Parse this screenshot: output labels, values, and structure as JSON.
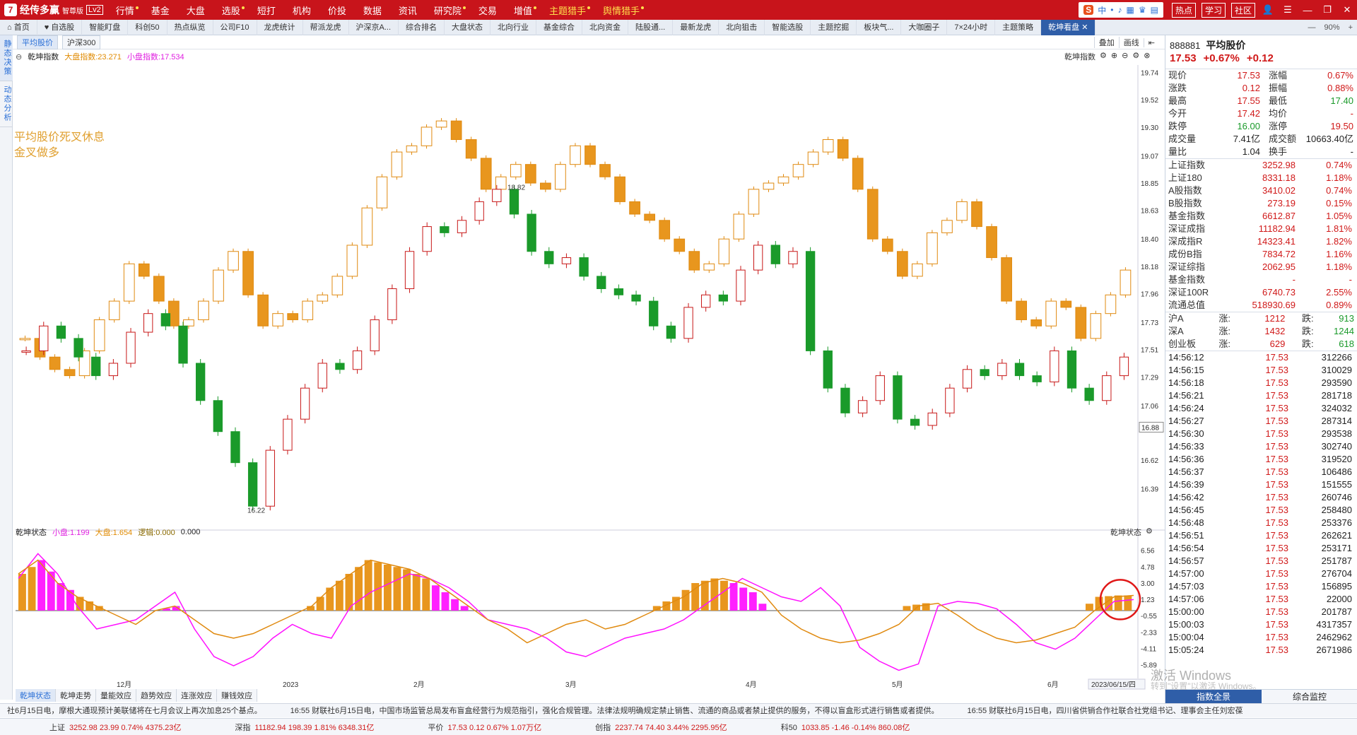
{
  "app": {
    "logo": "经传多赢",
    "edition": "智尊版",
    "level": "Lv2"
  },
  "menu": [
    {
      "label": "行情",
      "dot": true
    },
    {
      "label": "基金",
      "dot": false
    },
    {
      "label": "大盘",
      "dot": false
    },
    {
      "label": "选股",
      "dot": true
    },
    {
      "label": "短打",
      "dot": false
    },
    {
      "label": "机构",
      "dot": false
    },
    {
      "label": "价投",
      "dot": false
    },
    {
      "label": "数据",
      "dot": false
    },
    {
      "label": "资讯",
      "dot": false
    },
    {
      "label": "研究院",
      "dot": true
    },
    {
      "label": "交易",
      "dot": false
    },
    {
      "label": "增值",
      "dot": true
    },
    {
      "label": "主题猎手",
      "dot": true,
      "hl": true
    },
    {
      "label": "舆情猎手",
      "dot": true,
      "hl": true
    }
  ],
  "top_right": {
    "ime": [
      "S",
      "中",
      "•",
      "♪",
      "▦",
      "♛",
      "▤"
    ],
    "btns": [
      "热点",
      "学习",
      "社区"
    ]
  },
  "tabs": [
    "首页",
    "自选股",
    "智能盯盘",
    "科创50",
    "热点纵览",
    "公司F10",
    "龙虎统计",
    "帮派龙虎",
    "沪深京A...",
    "综合排名",
    "大盘状态",
    "北向行业",
    "基金综合",
    "北向资金",
    "陆股通...",
    "最新龙虎",
    "北向狙击",
    "智能选股",
    "主题挖掘",
    "板块气...",
    "大咖圈子",
    "7×24小时",
    "主题策略",
    "乾坤看盘"
  ],
  "tabs_right": {
    "zoom": "90%"
  },
  "left_strip": [
    "静态决策",
    "动态分析"
  ],
  "toolbar": {
    "left": [
      "平均股价",
      "沪深300"
    ],
    "right": [
      "叠加",
      "画线"
    ]
  },
  "main_legend": {
    "name": "乾坤指数",
    "big_label": "大盘指数:23.271",
    "small_label": "小盘指数:17.534",
    "right": "乾坤指数"
  },
  "annotation": [
    "平均股价死叉休息",
    "金叉做多"
  ],
  "sub_legend": {
    "name": "乾坤状态",
    "small": "小盘:1.199",
    "big": "大盘:1.654",
    "logic": "逻辑:0.000",
    "v": "0.000",
    "right": "乾坤状态"
  },
  "chart_data": {
    "type": "candlestick",
    "y_ticks": [
      "19.74",
      "19.52",
      "19.30",
      "19.07",
      "18.85",
      "18.63",
      "18.40",
      "18.18",
      "17.96",
      "17.73",
      "17.51",
      "17.29",
      "17.06",
      "16.88",
      "16.62",
      "16.39"
    ],
    "current_price_tag": "16.88",
    "high_label": "18.82",
    "low_label": "16.22",
    "sub_y_ticks": [
      "6.56",
      "4.78",
      "3.00",
      "1.23",
      "-0.55",
      "-2.33",
      "-4.11",
      "-5.89"
    ],
    "x_labels": [
      "12月",
      "2023",
      "2月",
      "3月",
      "4月",
      "5月",
      "6月"
    ],
    "date_tag": "2023/06/15/四",
    "orange_close": [
      17.6,
      17.45,
      17.35,
      17.3,
      17.5,
      17.75,
      17.9,
      18.2,
      18.1,
      17.9,
      17.7,
      17.75,
      17.9,
      18.15,
      18.3,
      17.95,
      17.7,
      17.8,
      17.75,
      17.9,
      17.95,
      18.1,
      18.35,
      18.65,
      18.9,
      19.1,
      19.15,
      19.3,
      19.35,
      19.2,
      19.05,
      18.8,
      18.9,
      19.0,
      18.85,
      18.8,
      19.0,
      19.15,
      19.0,
      18.9,
      18.7,
      18.6,
      18.55,
      18.4,
      18.3,
      18.15,
      18.2,
      18.4,
      18.6,
      18.8,
      18.85,
      18.9,
      19.0,
      19.1,
      19.2,
      19.05,
      18.8,
      18.4,
      18.3,
      18.1,
      18.2,
      18.45,
      18.55,
      18.7,
      18.5,
      18.25,
      17.9,
      17.75,
      17.7,
      17.9,
      17.85,
      17.6,
      17.8,
      17.95,
      18.15
    ],
    "green_close": [
      17.5,
      17.7,
      17.6,
      17.45,
      17.3,
      17.4,
      17.65,
      17.8,
      17.7,
      17.4,
      17.1,
      16.85,
      16.6,
      16.25,
      16.7,
      16.95,
      17.2,
      17.4,
      17.35,
      17.5,
      17.75,
      18.0,
      18.3,
      18.5,
      18.45,
      18.55,
      18.7,
      18.8,
      18.6,
      18.3,
      18.2,
      18.25,
      18.1,
      18.0,
      17.95,
      17.9,
      17.7,
      17.6,
      17.85,
      17.95,
      17.9,
      18.15,
      18.35,
      18.2,
      18.3,
      17.5,
      17.2,
      17.0,
      17.1,
      17.3,
      16.95,
      16.9,
      17.0,
      17.2,
      17.35,
      17.3,
      17.4,
      17.3,
      17.25,
      17.5,
      17.2,
      17.1,
      17.3,
      17.45
    ],
    "sub_line_small": [
      3.5,
      6.2,
      4.0,
      0.5,
      -2.0,
      -1.5,
      -1.0,
      0.5,
      2.0,
      -2.0,
      -5.0,
      -6.0,
      -5.0,
      -3.0,
      -1.5,
      -2.5,
      -3.0,
      0.5,
      2.0,
      3.0,
      4.0,
      3.5,
      2.5,
      1.0,
      -1.0,
      -1.5,
      -2.0,
      -3.0,
      -4.5,
      -5.0,
      -4.0,
      -3.0,
      -2.5,
      -2.0,
      -1.0,
      0.5,
      2.0,
      3.5,
      2.5,
      1.5,
      1.0,
      2.5,
      0.5,
      -4.0,
      -5.5,
      -6.5,
      -5.8,
      0.5,
      1.0,
      0.8,
      0.2,
      -1.5,
      -3.5,
      -4.2,
      -3.0,
      -1.0,
      1.0,
      1.2
    ],
    "sub_line_big": [
      4.0,
      5.5,
      3.0,
      1.5,
      0.5,
      -0.5,
      -1.5,
      0.0,
      0.5,
      -1.0,
      -2.5,
      -3.0,
      -2.5,
      -1.5,
      -0.5,
      0.5,
      2.5,
      4.0,
      5.5,
      5.0,
      4.5,
      3.5,
      2.0,
      0.5,
      -1.0,
      -2.0,
      -3.5,
      -2.5,
      -1.5,
      -1.0,
      -2.0,
      -1.5,
      -0.5,
      0.5,
      1.5,
      3.0,
      3.5,
      3.0,
      2.0,
      -0.5,
      -2.0,
      -3.0,
      -3.5,
      -3.2,
      -2.5,
      -1.5,
      0.5,
      0.8,
      -0.5,
      -2.0,
      -3.0,
      -3.5,
      -3.2,
      -2.5,
      -1.8,
      0.0,
      1.5,
      1.65
    ]
  },
  "bottom_tabs": [
    "乾坤状态",
    "乾坤走势",
    "量能效应",
    "趋势效应",
    "连涨效应",
    "赚钱效应"
  ],
  "ticker": [
    "社6月15日电，摩根大通现预计美联储将在七月会议上再次加息25个基点。",
    "16:55 财联社6月15日电，中国市场监管总局发布盲盒经营行为规范指引，强化合规管理。法律法规明确规定禁止销售、流通的商品或者禁止提供的服务，不得以盲盒形式进行销售或者提供。",
    "16:55 财联社6月15日电，四川省供销合作社联合社党组书记、理事会主任刘宏葆"
  ],
  "statusbar": [
    {
      "n": "上证",
      "v": "3252.98  23.99  0.74%  4375.23亿"
    },
    {
      "n": "深指",
      "v": "11182.94  198.39  1.81%  6348.31亿"
    },
    {
      "n": "平价",
      "v": "17.53  0.12  0.67%  1.07万亿"
    },
    {
      "n": "创指",
      "v": "2237.74  74.40  3.44%  2295.95亿"
    },
    {
      "n": "科50",
      "v": "1033.85  -1.46  -0.14%  860.08亿"
    }
  ],
  "quote": {
    "code": "888881",
    "name": "平均股价",
    "price": "17.53",
    "pct": "+0.67%",
    "chg": "+0.12",
    "rows": [
      {
        "l": "现价",
        "v": "17.53",
        "l2": "涨幅",
        "v2": "0.67%"
      },
      {
        "l": "涨跌",
        "v": "0.12",
        "l2": "振幅",
        "v2": "0.88%"
      },
      {
        "l": "最高",
        "v": "17.55",
        "l2": "最低",
        "v2": "17.40",
        "v2g": true
      },
      {
        "l": "今开",
        "v": "17.42",
        "l2": "均价",
        "v2": "-"
      },
      {
        "l": "跌停",
        "v": "16.00",
        "vg": true,
        "l2": "涨停",
        "v2": "19.50"
      },
      {
        "l": "成交量",
        "v": "7.41亿",
        "vb": true,
        "l2": "成交额",
        "v2": "10663.40亿",
        "v2b": true
      },
      {
        "l": "量比",
        "v": "1.04",
        "vb": true,
        "l2": "换手",
        "v2": "-",
        "v2b": true
      }
    ],
    "indices": [
      {
        "n": "上证指数",
        "v": "3252.98",
        "c": "0.74%"
      },
      {
        "n": "上证180",
        "v": "8331.18",
        "c": "1.18%"
      },
      {
        "n": "A股指数",
        "v": "3410.02",
        "c": "0.74%"
      },
      {
        "n": "B股指数",
        "v": "273.19",
        "c": "0.15%"
      },
      {
        "n": "基金指数",
        "v": "6612.87",
        "c": "1.05%"
      },
      {
        "n": "深证成指",
        "v": "11182.94",
        "c": "1.81%"
      },
      {
        "n": "深成指R",
        "v": "14323.41",
        "c": "1.82%"
      },
      {
        "n": "成份B指",
        "v": "7834.72",
        "c": "1.16%"
      },
      {
        "n": "深证综指",
        "v": "2062.95",
        "c": "1.18%"
      },
      {
        "n": "基金指数",
        "v": "-",
        "c": "-"
      },
      {
        "n": "深证100R",
        "v": "6740.73",
        "c": "2.55%"
      },
      {
        "n": "流通总值",
        "v": "518930.69",
        "c": "0.89%"
      }
    ],
    "markets": [
      {
        "n": "沪A",
        "a": "1212",
        "c": "913"
      },
      {
        "n": "深A",
        "a": "1432",
        "c": "1244"
      },
      {
        "n": "创业板",
        "a": "629",
        "c": "618"
      }
    ],
    "ticks": [
      [
        "14:56:12",
        "17.53",
        "312266"
      ],
      [
        "14:56:15",
        "17.53",
        "310029"
      ],
      [
        "14:56:18",
        "17.53",
        "293590"
      ],
      [
        "14:56:21",
        "17.53",
        "281718"
      ],
      [
        "14:56:24",
        "17.53",
        "324032"
      ],
      [
        "14:56:27",
        "17.53",
        "287314"
      ],
      [
        "14:56:30",
        "17.53",
        "293538"
      ],
      [
        "14:56:33",
        "17.53",
        "302740"
      ],
      [
        "14:56:36",
        "17.53",
        "319520"
      ],
      [
        "14:56:37",
        "17.53",
        "106486"
      ],
      [
        "14:56:39",
        "17.53",
        "151555"
      ],
      [
        "14:56:42",
        "17.53",
        "260746"
      ],
      [
        "14:56:45",
        "17.53",
        "258480"
      ],
      [
        "14:56:48",
        "17.53",
        "253376"
      ],
      [
        "14:56:51",
        "17.53",
        "262621"
      ],
      [
        "14:56:54",
        "17.53",
        "253171"
      ],
      [
        "14:56:57",
        "17.53",
        "251787"
      ],
      [
        "14:57:00",
        "17.53",
        "276704"
      ],
      [
        "14:57:03",
        "17.53",
        "156895"
      ],
      [
        "14:57:06",
        "17.53",
        "22000"
      ],
      [
        "15:00:00",
        "17.53",
        "201787"
      ],
      [
        "15:00:03",
        "17.53",
        "4317357"
      ],
      [
        "15:00:04",
        "17.53",
        "2462962"
      ],
      [
        "15:05:24",
        "17.53",
        "2671986"
      ]
    ],
    "bottom": [
      "指数全景",
      "综合监控"
    ]
  },
  "watermark": {
    "line1": "激活 Windows",
    "line2": "转到\"设置\"以激活 Windows。"
  }
}
